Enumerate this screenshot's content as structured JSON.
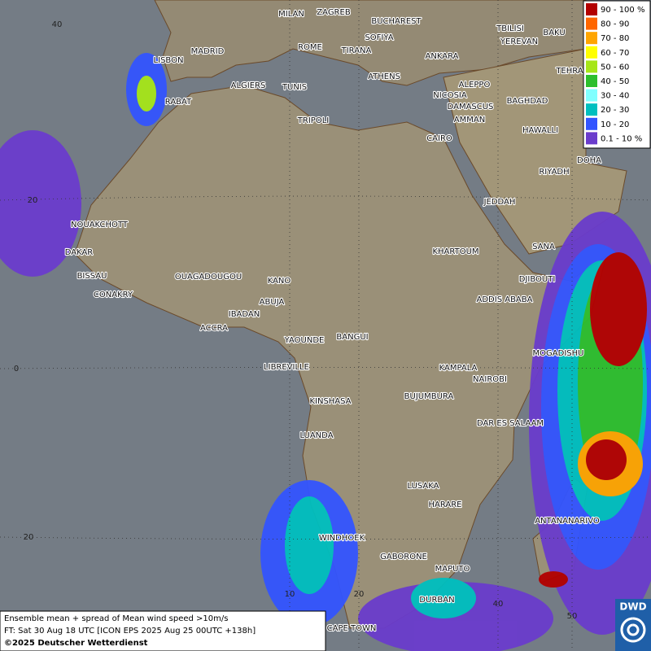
{
  "legend": {
    "items": [
      {
        "label": "90 - 100 %",
        "color": "#b30000"
      },
      {
        "label": "80 - 90",
        "color": "#ff6600"
      },
      {
        "label": "70 - 80",
        "color": "#ffa500"
      },
      {
        "label": "60 - 70",
        "color": "#ffff00"
      },
      {
        "label": "50 - 60",
        "color": "#a6e619"
      },
      {
        "label": "40 - 50",
        "color": "#2dbf2d"
      },
      {
        "label": "30 - 40",
        "color": "#80ffff"
      },
      {
        "label": "20 - 30",
        "color": "#00bfbf"
      },
      {
        "label": "10 - 20",
        "color": "#3355ff"
      },
      {
        "label": "0.1 - 10 %",
        "color": "#6a3ccc"
      }
    ]
  },
  "cities": [
    "MILAN",
    "ZAGREB",
    "BUCHAREST",
    "SOFIYA",
    "ROME",
    "TIRANA",
    "MADRID",
    "LISBON",
    "ANKARA",
    "TBILISI",
    "BAKU",
    "YEREVAN",
    "TEHRA",
    "ALGIERS",
    "TUNIS",
    "ATHENS",
    "ALEPPO",
    "RABAT",
    "NICOSIA",
    "BAGHDAD",
    "TRIPOLI",
    "DAMASCUS",
    "AMMAN",
    "HAWALLI",
    "CAIRO",
    "DOHA",
    "RIYADH",
    "JEDDAH",
    "NOUAKCHOTT",
    "SANA",
    "KHARTOUM",
    "DAKAR",
    "BISSAU",
    "OUAGADOUGOU",
    "KANO",
    "DJIBOUTI",
    "CONAKRY",
    "ABUJA",
    "ADDIS ABABA",
    "IBADAN",
    "ACCRA",
    "YAOUNDE",
    "BANGUI",
    "MOGADISHU",
    "LIBREVILLE",
    "KAMPALA",
    "NAIROBI",
    "KINSHASA",
    "BUJUMBURA",
    "DAR ES SALAAM",
    "LUANDA",
    "LUSAKA",
    "HARARE",
    "ANTANANARIVO",
    "WINDHOEK",
    "GABORONE",
    "MAPUTO",
    "DURBAN",
    "CAPE TOWN"
  ],
  "grid_labels": [
    "40",
    "20",
    "0",
    "20",
    "10",
    "20",
    "40",
    "50"
  ],
  "footer": {
    "lines": [
      "Ensemble mean + spread of Mean wind speed >10m/s",
      "FT: Sat 30 Aug 18 UTC [ICON EPS 2025 Aug 25 00UTC +138h]",
      "©2025 Deutscher Wetterdienst"
    ]
  },
  "logo": "DWD"
}
